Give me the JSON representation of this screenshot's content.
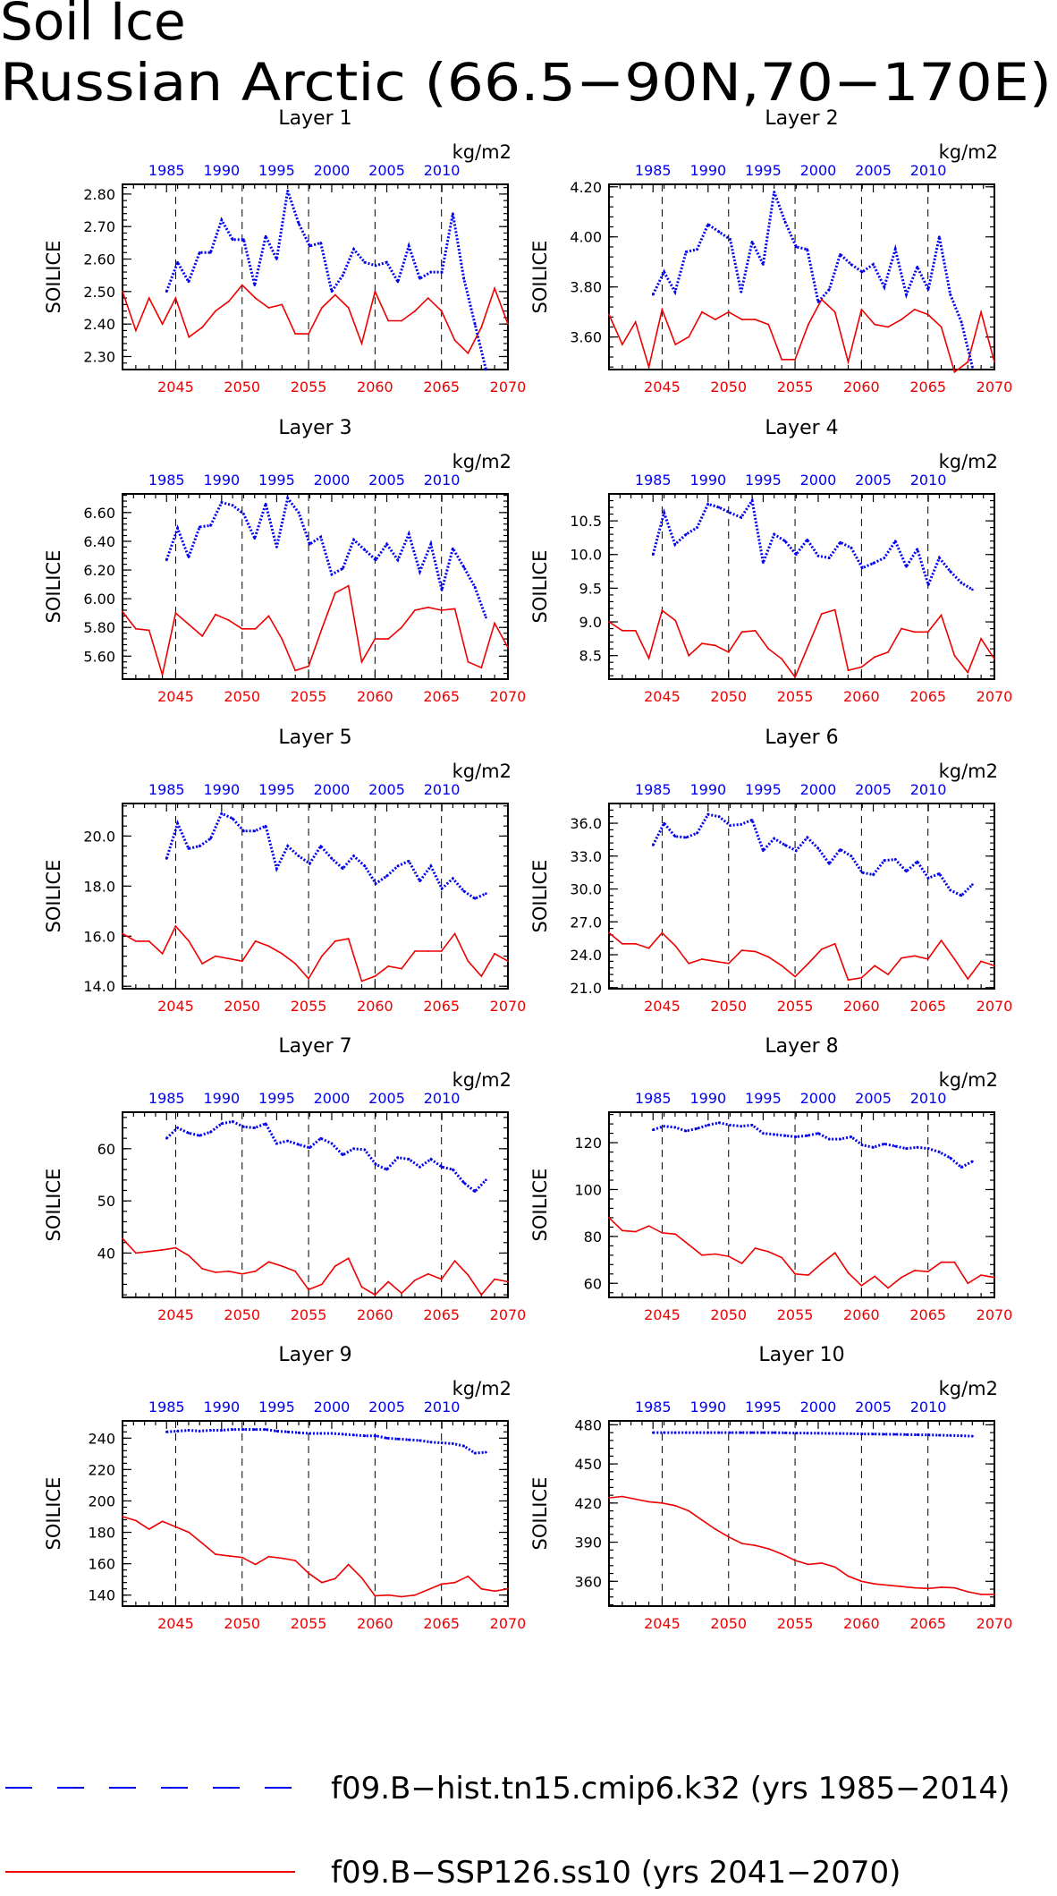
{
  "title": {
    "line1": "Soil Ice",
    "line2": "Russian Arctic (66.5−90N,70−170E)"
  },
  "units": "kg/m2",
  "ylabel": "SOILICE",
  "colors": {
    "hist": "#0000ee",
    "ssp": "#ee0000",
    "axis": "#000000"
  },
  "top_axis": {
    "ticks": [
      1985,
      1990,
      1995,
      2000,
      2005,
      2010
    ],
    "range": [
      1981,
      2016
    ]
  },
  "bottom_axis": {
    "ticks": [
      2045,
      2050,
      2055,
      2060,
      2065,
      2070
    ],
    "range": [
      2041,
      2070
    ]
  },
  "legend": {
    "hist": "f09.B−hist.tn15.cmip6.k32 (yrs 1985−2014)",
    "ssp": "f09.B−SSP126.ss10 (yrs 2041−2070)"
  },
  "chart_data": [
    {
      "type": "line",
      "title": "Layer 1",
      "ylabel": "SOILICE",
      "ylim": [
        2.26,
        2.83
      ],
      "yticks": [
        "2.30",
        "2.40",
        "2.50",
        "2.60",
        "2.70",
        "2.80"
      ],
      "series": [
        {
          "name": "f09.B−hist.tn15.cmip6.k32 (yrs 1985−2014)",
          "x_start": 1985,
          "values": [
            2.5,
            2.59,
            2.53,
            2.62,
            2.62,
            2.72,
            2.66,
            2.66,
            2.52,
            2.67,
            2.6,
            2.81,
            2.71,
            2.64,
            2.65,
            2.5,
            2.55,
            2.63,
            2.59,
            2.58,
            2.59,
            2.53,
            2.64,
            2.54,
            2.56,
            2.56,
            2.74,
            2.54,
            2.4,
            2.26
          ]
        },
        {
          "name": "f09.B−SSP126.ss10 (yrs 2041−2070)",
          "x_start": 2041,
          "values": [
            2.5,
            2.38,
            2.48,
            2.4,
            2.48,
            2.36,
            2.39,
            2.44,
            2.47,
            2.52,
            2.48,
            2.45,
            2.46,
            2.37,
            2.37,
            2.45,
            2.49,
            2.45,
            2.34,
            2.5,
            2.41,
            2.41,
            2.44,
            2.48,
            2.44,
            2.35,
            2.31,
            2.39,
            2.51,
            2.4
          ]
        }
      ]
    },
    {
      "type": "line",
      "title": "Layer 2",
      "ylabel": "SOILICE",
      "ylim": [
        3.47,
        4.21
      ],
      "yticks": [
        "3.60",
        "3.80",
        "4.00",
        "4.20"
      ],
      "series": [
        {
          "name": "f09.B−hist.tn15.cmip6.k32 (yrs 1985−2014)",
          "x_start": 1985,
          "values": [
            3.77,
            3.86,
            3.78,
            3.94,
            3.95,
            4.05,
            4.02,
            3.99,
            3.78,
            3.98,
            3.89,
            4.18,
            4.06,
            3.96,
            3.95,
            3.74,
            3.79,
            3.93,
            3.89,
            3.86,
            3.89,
            3.8,
            3.95,
            3.77,
            3.88,
            3.79,
            4.0,
            3.77,
            3.66,
            3.48
          ]
        },
        {
          "name": "f09.B−SSP126.ss10 (yrs 2041−2070)",
          "x_start": 2041,
          "values": [
            3.69,
            3.57,
            3.66,
            3.48,
            3.71,
            3.57,
            3.6,
            3.7,
            3.67,
            3.7,
            3.67,
            3.67,
            3.65,
            3.51,
            3.51,
            3.65,
            3.75,
            3.7,
            3.5,
            3.71,
            3.65,
            3.64,
            3.67,
            3.71,
            3.69,
            3.64,
            3.46,
            3.5,
            3.7,
            3.5
          ]
        }
      ]
    },
    {
      "type": "line",
      "title": "Layer 3",
      "ylabel": "SOILICE",
      "ylim": [
        5.44,
        6.73
      ],
      "yticks": [
        "5.60",
        "5.80",
        "6.00",
        "6.20",
        "6.40",
        "6.60"
      ],
      "series": [
        {
          "name": "f09.B−hist.tn15.cmip6.k32 (yrs 1985−2014)",
          "x_start": 1985,
          "values": [
            6.27,
            6.49,
            6.29,
            6.5,
            6.51,
            6.67,
            6.65,
            6.59,
            6.42,
            6.66,
            6.36,
            6.7,
            6.6,
            6.38,
            6.43,
            6.17,
            6.21,
            6.41,
            6.34,
            6.27,
            6.38,
            6.27,
            6.45,
            6.19,
            6.38,
            6.06,
            6.35,
            6.22,
            6.08,
            5.87
          ]
        },
        {
          "name": "f09.B−SSP126.ss10 (yrs 2041−2070)",
          "x_start": 2041,
          "values": [
            5.91,
            5.79,
            5.78,
            5.47,
            5.9,
            5.82,
            5.74,
            5.89,
            5.85,
            5.79,
            5.79,
            5.88,
            5.72,
            5.5,
            5.53,
            5.79,
            6.04,
            6.09,
            5.56,
            5.72,
            5.72,
            5.8,
            5.92,
            5.94,
            5.92,
            5.93,
            5.56,
            5.52,
            5.83,
            5.66
          ]
        }
      ]
    },
    {
      "type": "line",
      "title": "Layer 4",
      "ylabel": "SOILICE",
      "ylim": [
        8.15,
        10.9
      ],
      "yticks": [
        "8.5",
        "9.0",
        "9.5",
        "10.0",
        "10.5"
      ],
      "series": [
        {
          "name": "f09.B−hist.tn15.cmip6.k32 (yrs 1985−2014)",
          "x_start": 1985,
          "values": [
            10.0,
            10.62,
            10.15,
            10.3,
            10.4,
            10.75,
            10.7,
            10.62,
            10.55,
            10.8,
            9.88,
            10.3,
            10.2,
            10.0,
            10.22,
            9.98,
            9.95,
            10.18,
            10.1,
            9.8,
            9.87,
            9.95,
            10.2,
            9.82,
            10.08,
            9.55,
            9.95,
            9.75,
            9.58,
            9.48
          ]
        },
        {
          "name": "f09.B−SSP126.ss10 (yrs 2041−2070)",
          "x_start": 2041,
          "values": [
            9.0,
            8.87,
            8.87,
            8.46,
            9.17,
            9.02,
            8.5,
            8.68,
            8.65,
            8.55,
            8.85,
            8.87,
            8.6,
            8.45,
            8.18,
            8.65,
            9.12,
            9.18,
            8.28,
            8.33,
            8.48,
            8.55,
            8.9,
            8.85,
            8.85,
            9.1,
            8.5,
            8.25,
            8.75,
            8.45
          ]
        }
      ]
    },
    {
      "type": "line",
      "title": "Layer 5",
      "ylabel": "SOILICE",
      "ylim": [
        13.9,
        21.3
      ],
      "yticks": [
        "14.0",
        "16.0",
        "18.0",
        "20.0"
      ],
      "series": [
        {
          "name": "f09.B−hist.tn15.cmip6.k32 (yrs 1985−2014)",
          "x_start": 1985,
          "values": [
            19.1,
            20.5,
            19.5,
            19.6,
            19.9,
            20.9,
            20.7,
            20.2,
            20.2,
            20.4,
            18.7,
            19.6,
            19.2,
            18.9,
            19.6,
            19.1,
            18.7,
            19.2,
            18.8,
            18.1,
            18.4,
            18.8,
            19.0,
            18.2,
            18.8,
            17.9,
            18.3,
            17.8,
            17.5,
            17.7
          ]
        },
        {
          "name": "f09.B−SSP126.ss10 (yrs 2041−2070)",
          "x_start": 2041,
          "values": [
            16.1,
            15.8,
            15.8,
            15.3,
            16.4,
            15.8,
            14.9,
            15.2,
            15.1,
            15.0,
            15.8,
            15.6,
            15.3,
            14.9,
            14.3,
            15.2,
            15.8,
            15.9,
            14.2,
            14.4,
            14.8,
            14.7,
            15.4,
            15.4,
            15.4,
            16.1,
            15.0,
            14.4,
            15.3,
            15.0
          ]
        }
      ]
    },
    {
      "type": "line",
      "title": "Layer 6",
      "ylabel": "SOILICE",
      "ylim": [
        20.9,
        37.8
      ],
      "yticks": [
        "21.0",
        "24.0",
        "27.0",
        "30.0",
        "33.0",
        "36.0"
      ],
      "series": [
        {
          "name": "f09.B−hist.tn15.cmip6.k32 (yrs 1985−2014)",
          "x_start": 1985,
          "values": [
            34.0,
            36.0,
            34.8,
            34.7,
            35.1,
            36.8,
            36.6,
            35.8,
            35.9,
            36.3,
            33.5,
            34.6,
            34.0,
            33.5,
            34.7,
            33.7,
            32.3,
            33.6,
            33.0,
            31.5,
            31.3,
            32.6,
            32.7,
            31.6,
            32.5,
            31.0,
            31.4,
            29.9,
            29.4,
            30.4
          ]
        },
        {
          "name": "f09.B−SSP126.ss10 (yrs 2041−2070)",
          "x_start": 2041,
          "values": [
            26.0,
            25.0,
            25.0,
            24.6,
            26.0,
            24.8,
            23.2,
            23.6,
            23.4,
            23.2,
            24.4,
            24.3,
            23.8,
            23.0,
            22.0,
            23.2,
            24.5,
            25.0,
            21.7,
            21.9,
            23.0,
            22.2,
            23.7,
            23.9,
            23.6,
            25.3,
            23.6,
            21.8,
            23.4,
            23.0
          ]
        }
      ]
    },
    {
      "type": "line",
      "title": "Layer 7",
      "ylabel": "SOILICE",
      "ylim": [
        31.5,
        67
      ],
      "yticks": [
        "40",
        "50",
        "60"
      ],
      "series": [
        {
          "name": "f09.B−hist.tn15.cmip6.k32 (yrs 1985−2014)",
          "x_start": 1985,
          "values": [
            62.0,
            64.0,
            63.0,
            62.5,
            63.2,
            64.8,
            65.2,
            64.2,
            64.0,
            64.8,
            61.0,
            61.5,
            60.8,
            60.2,
            62.0,
            61.0,
            58.8,
            60.0,
            59.8,
            57.0,
            56.0,
            58.3,
            58.0,
            56.5,
            58.0,
            56.5,
            56.0,
            53.5,
            51.8,
            54.0
          ]
        },
        {
          "name": "f09.B−SSP126.ss10 (yrs 2041−2070)",
          "x_start": 2041,
          "values": [
            42.8,
            40.0,
            40.3,
            40.6,
            41.0,
            39.5,
            37.0,
            36.3,
            36.5,
            36.0,
            36.5,
            38.3,
            37.5,
            36.5,
            33.0,
            34.0,
            37.5,
            39.0,
            33.5,
            32.0,
            34.5,
            32.3,
            34.8,
            36.0,
            35.0,
            38.5,
            35.8,
            32.0,
            35.0,
            34.5
          ]
        }
      ]
    },
    {
      "type": "line",
      "title": "Layer 8",
      "ylabel": "SOILICE",
      "ylim": [
        54,
        133
      ],
      "yticks": [
        "60",
        "80",
        "100",
        "120"
      ],
      "series": [
        {
          "name": "f09.B−hist.tn15.cmip6.k32 (yrs 1985−2014)",
          "x_start": 1985,
          "values": [
            125.5,
            127.0,
            126.5,
            125.0,
            126.0,
            127.5,
            128.5,
            127.5,
            127.0,
            127.5,
            124.0,
            123.5,
            123.0,
            122.5,
            123.0,
            124.0,
            121.5,
            121.5,
            122.5,
            119.0,
            118.0,
            119.5,
            118.5,
            117.5,
            118.0,
            117.5,
            116.0,
            113.5,
            109.5,
            112.0
          ]
        },
        {
          "name": "f09.B−SSP126.ss10 (yrs 2041−2070)",
          "x_start": 2041,
          "values": [
            88.0,
            82.5,
            82.0,
            84.5,
            81.5,
            81.0,
            76.5,
            72.0,
            72.5,
            71.5,
            68.5,
            75.0,
            73.5,
            71.0,
            64.0,
            63.5,
            68.5,
            73.0,
            64.5,
            59.0,
            63.0,
            58.0,
            62.5,
            65.5,
            65.0,
            69.0,
            69.0,
            60.0,
            63.5,
            62.5
          ]
        }
      ]
    },
    {
      "type": "line",
      "title": "Layer 9",
      "ylabel": "SOILICE",
      "ylim": [
        133,
        251
      ],
      "yticks": [
        "140",
        "160",
        "180",
        "200",
        "220",
        "240"
      ],
      "series": [
        {
          "name": "f09.B−hist.tn15.cmip6.k32 (yrs 1985−2014)",
          "x_start": 1985,
          "values": [
            244.0,
            244.5,
            245.0,
            244.5,
            245.0,
            245.0,
            245.5,
            245.5,
            245.5,
            245.5,
            244.5,
            244.0,
            243.5,
            243.0,
            243.0,
            243.0,
            242.5,
            242.0,
            241.5,
            241.5,
            240.0,
            239.5,
            239.0,
            238.5,
            237.5,
            237.0,
            236.5,
            235.0,
            230.5,
            231.0
          ]
        },
        {
          "name": "f09.B−SSP126.ss10 (yrs 2041−2070)",
          "x_start": 2041,
          "values": [
            190.0,
            187.5,
            182.0,
            187.0,
            183.5,
            180.0,
            173.0,
            166.0,
            165.0,
            164.0,
            159.5,
            164.5,
            163.5,
            162.0,
            154.0,
            148.0,
            150.5,
            159.5,
            151.0,
            139.5,
            140.0,
            139.0,
            140.0,
            143.5,
            147.0,
            148.0,
            152.0,
            144.0,
            142.5,
            144.0
          ]
        }
      ]
    },
    {
      "type": "line",
      "title": "Layer 10",
      "ylabel": "SOILICE",
      "ylim": [
        341,
        483
      ],
      "yticks": [
        "360",
        "390",
        "420",
        "450",
        "480"
      ],
      "series": [
        {
          "name": "f09.B−hist.tn15.cmip6.k32 (yrs 1985−2014)",
          "x_start": 1985,
          "values": [
            474.0,
            474.0,
            474.0,
            474.0,
            474.0,
            474.0,
            474.0,
            474.0,
            474.0,
            474.0,
            474.0,
            474.0,
            473.8,
            473.7,
            473.6,
            473.5,
            473.4,
            473.3,
            473.2,
            473.0,
            472.9,
            472.8,
            472.7,
            472.5,
            472.4,
            472.2,
            472.0,
            471.8,
            471.6,
            471.3
          ]
        },
        {
          "name": "f09.B−SSP126.ss10 (yrs 2041−2070)",
          "x_start": 2041,
          "values": [
            424.0,
            425.0,
            423.0,
            421.0,
            420.0,
            418.0,
            414.0,
            407.0,
            400.0,
            394.0,
            389.0,
            387.5,
            385.0,
            381.0,
            376.0,
            373.0,
            374.0,
            371.0,
            364.0,
            360.0,
            358.0,
            357.0,
            356.0,
            355.0,
            354.5,
            355.5,
            355.0,
            352.0,
            350.0,
            350.0
          ]
        }
      ]
    }
  ]
}
